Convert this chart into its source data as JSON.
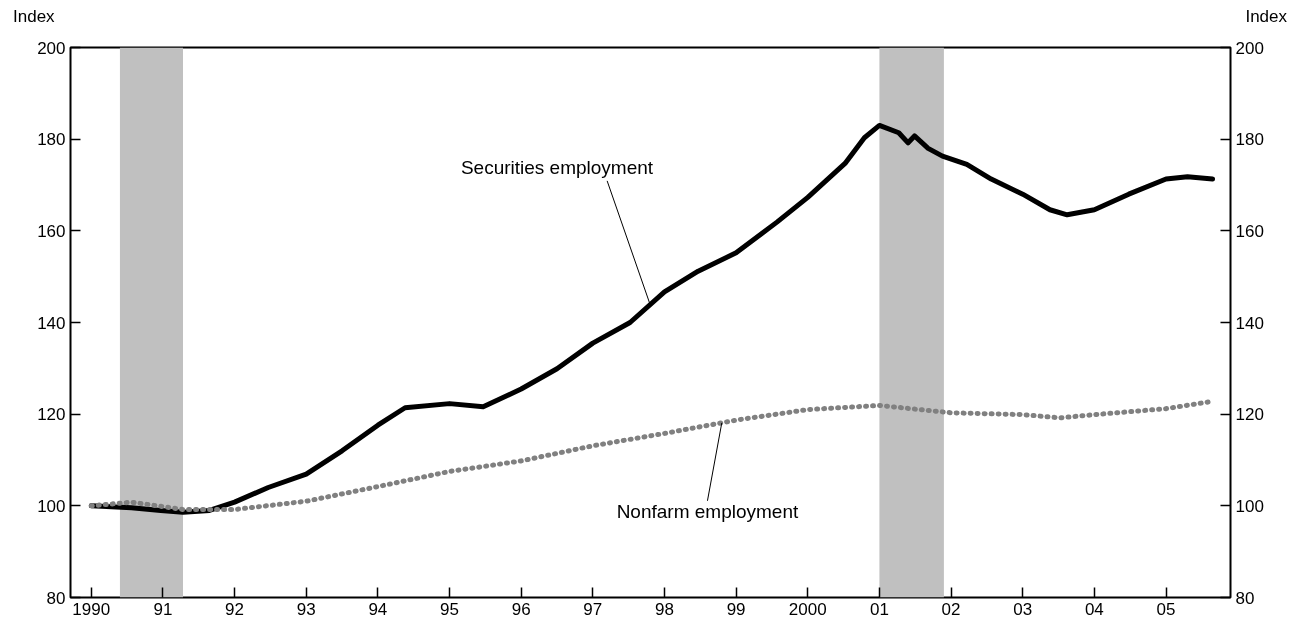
{
  "chart_data": {
    "type": "line",
    "ylabel": "Index",
    "y2label": "Index",
    "xlim": [
      1989.71,
      2005.9
    ],
    "ylim": [
      80,
      200
    ],
    "y2lim": [
      80,
      200
    ],
    "xticks": [
      1990,
      {
        "value": 1991,
        "label": "91"
      },
      {
        "value": 1992,
        "label": "92"
      },
      {
        "value": 1993,
        "label": "93"
      },
      {
        "value": 1994,
        "label": "94"
      },
      {
        "value": 1995,
        "label": "95"
      },
      {
        "value": 1996,
        "label": "96"
      },
      {
        "value": 1997,
        "label": "97"
      },
      {
        "value": 1998,
        "label": "98"
      },
      {
        "value": 1999,
        "label": "99"
      },
      2000,
      {
        "value": 2001,
        "label": "01"
      },
      {
        "value": 2002,
        "label": "02"
      },
      {
        "value": 2003,
        "label": "03"
      },
      {
        "value": 2004,
        "label": "04"
      },
      {
        "value": 2005,
        "label": "05"
      }
    ],
    "yticks": [
      80,
      100,
      120,
      140,
      160,
      180,
      200
    ],
    "y2ticks": [
      80,
      100,
      120,
      140,
      160,
      180,
      200
    ],
    "grid": false,
    "bands": [
      {
        "axis": "x",
        "from": 1990.4,
        "to": 1991.28,
        "color": "#c0c0c0"
      },
      {
        "axis": "x",
        "from": 2001.0,
        "to": 2001.9,
        "color": "#c0c0c0"
      }
    ],
    "series": [
      {
        "color": "#000000",
        "line_style": "solid",
        "x": [
          1990,
          1990.56,
          1990.97,
          1991.28,
          1991.65,
          1992,
          1992.47,
          1993,
          1993.5,
          1994,
          1994.38,
          1995,
          1995.47,
          1996,
          1996.5,
          1997,
          1997.52,
          1998,
          1998.47,
          1999,
          1999.57,
          2000,
          2000.52,
          2000.79,
          2001.0,
          2001.27,
          2001.4,
          2001.49,
          2001.68,
          2001.88,
          2002.22,
          2002.56,
          2003,
          2003.38,
          2003.62,
          2004,
          2004.48,
          2005,
          2005.3,
          2005.65
        ],
        "values": [
          100,
          99.6,
          99,
          98.6,
          99,
          100.8,
          104,
          106.9,
          112,
          117.6,
          121.4,
          122.3,
          121.6,
          125.5,
          129.9,
          135.5,
          140,
          146.7,
          151.2,
          155.2,
          161.9,
          167.3,
          174.7,
          180.3,
          183,
          181.4,
          179.2,
          180.7,
          178,
          176.3,
          174.5,
          171.3,
          168,
          164.6,
          163.5,
          164.6,
          168,
          171.3,
          171.8,
          171.3
        ]
      },
      {
        "color": "#808080",
        "line_style": "dotted",
        "x": [
          1990,
          1990.56,
          1991.28,
          1992,
          1993,
          1994,
          1995,
          1996,
          1997,
          1998,
          1999,
          2000,
          2001,
          2002,
          2003,
          2003.52,
          2004,
          2005,
          2005.65
        ],
        "values": [
          100,
          100.8,
          99.2,
          99.2,
          101,
          104.2,
          107.5,
          109.8,
          113.1,
          115.8,
          118.7,
          121,
          121.9,
          120.3,
          119.9,
          119.2,
          119.9,
          121.2,
          122.8
        ]
      }
    ],
    "annotations": [
      {
        "text": "Securities employment",
        "x": 1997.8,
        "y": 143.9
      },
      {
        "text": "Nonfarm employment",
        "x": 1998.8,
        "y": 118.1
      }
    ]
  }
}
